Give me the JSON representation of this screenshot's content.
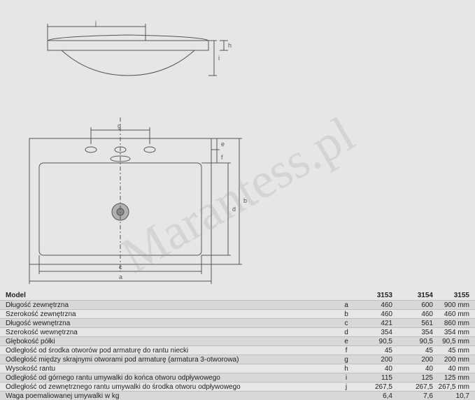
{
  "watermark": "Marantess.pl",
  "diagram": {
    "stroke": "#555555",
    "dim_labels": {
      "a": "a",
      "b": "b",
      "c": "c",
      "d": "d",
      "e": "e",
      "f": "f",
      "g": "g",
      "h": "h",
      "i": "i",
      "j": "j"
    }
  },
  "table": {
    "header": {
      "model": "Model",
      "cols": [
        "3153",
        "3154",
        "3155"
      ]
    },
    "rows": [
      {
        "label": "Długość zewnętrzna",
        "letter": "a",
        "vals": [
          "460",
          "600",
          "900"
        ],
        "unit": "mm"
      },
      {
        "label": "Szerokość zewnętrzna",
        "letter": "b",
        "vals": [
          "460",
          "460",
          "460"
        ],
        "unit": "mm"
      },
      {
        "label": "Długość wewnętrzna",
        "letter": "c",
        "vals": [
          "421",
          "561",
          "860"
        ],
        "unit": "mm"
      },
      {
        "label": "Szerokość wewnętrzna",
        "letter": "d",
        "vals": [
          "354",
          "354",
          "354"
        ],
        "unit": "mm"
      },
      {
        "label": "Głębokość półki",
        "letter": "e",
        "vals": [
          "90,5",
          "90,5",
          "90,5"
        ],
        "unit": "mm"
      },
      {
        "label": "Odległość od środka otworów pod armaturę do rantu niecki",
        "letter": "f",
        "vals": [
          "45",
          "45",
          "45"
        ],
        "unit": "mm"
      },
      {
        "label": "Odległość między skrajnymi otworami pod armaturę (armatura 3-otworowa)",
        "letter": "g",
        "vals": [
          "200",
          "200",
          "200"
        ],
        "unit": "mm"
      },
      {
        "label": "Wysokość rantu",
        "letter": "h",
        "vals": [
          "40",
          "40",
          "40"
        ],
        "unit": "mm"
      },
      {
        "label": "Odległość od górnego rantu umywalki do końca otworu odpływowego",
        "letter": "i",
        "vals": [
          "115",
          "125",
          "125"
        ],
        "unit": "mm"
      },
      {
        "label": "Odległość od zewnętrznego rantu umywalki do środka otworu odpływowego",
        "letter": "j",
        "vals": [
          "267,5",
          "267,5",
          "267,5"
        ],
        "unit": "mm"
      },
      {
        "label": "Waga poemaliowanej umywalki w kg",
        "letter": "",
        "vals": [
          "6,4",
          "7,6",
          "10,7"
        ],
        "unit": ""
      }
    ]
  }
}
